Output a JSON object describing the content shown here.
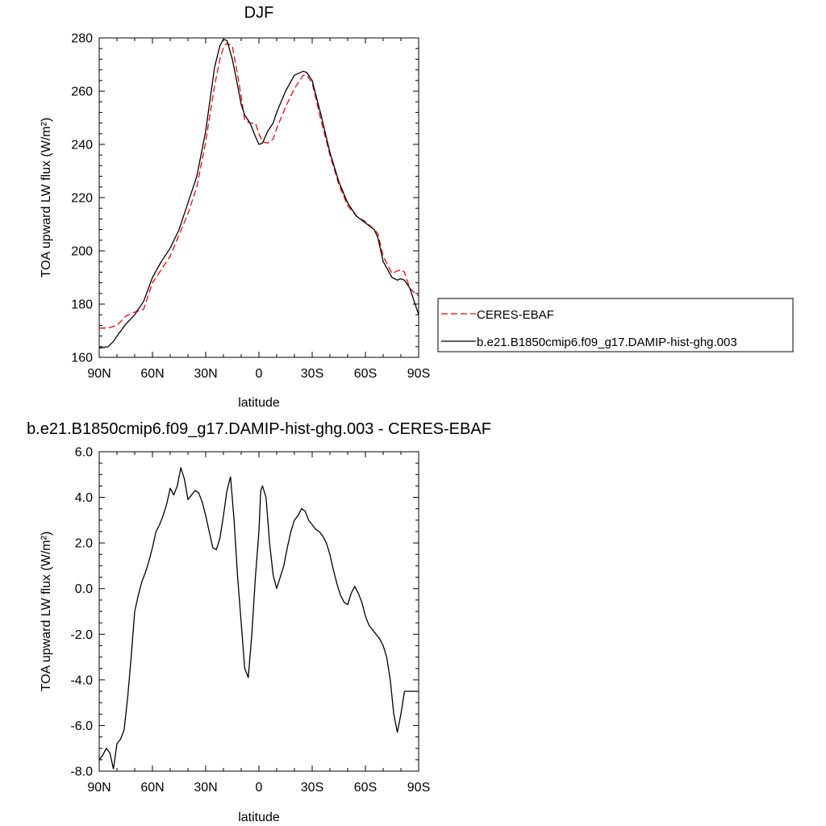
{
  "chart_data": [
    {
      "type": "line",
      "title": "DJF",
      "xlabel": "latitude",
      "ylabel": "TOA upward LW flux (W/m²)",
      "xlim": [
        90,
        -90
      ],
      "ylim": [
        160,
        280
      ],
      "yticks": [
        "280",
        "260",
        "240",
        "220",
        "200",
        "180",
        "160"
      ],
      "xticks": [
        "90N",
        "60N",
        "30N",
        "0",
        "30S",
        "60S",
        "90S"
      ],
      "grid": false,
      "legend_position": "right",
      "series": [
        {
          "name": "CERES-EBAF",
          "color": "#ff0000",
          "style": "dashed",
          "x": [
            90,
            85,
            80,
            75,
            70,
            65,
            60,
            55,
            50,
            45,
            40,
            35,
            30,
            25,
            22,
            20,
            18,
            15,
            12,
            10,
            8,
            5,
            2,
            0,
            -2,
            -5,
            -8,
            -10,
            -15,
            -20,
            -25,
            -27,
            -30,
            -35,
            -40,
            -45,
            -50,
            -55,
            -60,
            -65,
            -67,
            -70,
            -75,
            -78,
            -80,
            -82,
            -85,
            -88,
            -90
          ],
          "y": [
            171,
            171,
            172,
            175.5,
            177,
            178,
            188,
            193,
            198,
            206,
            214,
            224,
            241,
            262,
            272,
            276.5,
            278,
            277,
            266,
            258,
            249,
            248,
            248,
            244,
            241,
            240.5,
            242,
            246,
            254,
            261,
            266,
            266,
            263,
            249,
            236,
            225,
            217,
            213,
            211,
            208,
            206.5,
            198,
            191.5,
            192.5,
            193,
            192,
            186,
            184,
            183
          ]
        },
        {
          "name": "b.e21.B1850cmip6.f09_g17.DAMIP-hist-ghg.003",
          "color": "#000000",
          "style": "solid",
          "x": [
            90,
            85,
            82,
            80,
            75,
            70,
            65,
            60,
            55,
            50,
            45,
            40,
            35,
            30,
            25,
            22,
            20,
            18,
            15,
            12,
            10,
            8,
            5,
            2,
            0,
            -2,
            -5,
            -8,
            -10,
            -15,
            -20,
            -25,
            -27,
            -30,
            -35,
            -40,
            -45,
            -50,
            -55,
            -60,
            -65,
            -67,
            -70,
            -75,
            -78,
            -80,
            -82,
            -85,
            -88,
            -90
          ],
          "y": [
            163.5,
            164,
            166,
            168,
            172.5,
            176,
            181,
            190,
            196,
            201,
            208,
            218,
            228,
            245,
            269,
            277,
            279.5,
            279,
            272,
            262,
            255,
            251,
            248,
            243,
            240,
            240.5,
            245,
            248,
            252,
            260,
            266,
            267.5,
            267,
            264,
            251,
            237,
            226,
            218,
            213,
            210.5,
            208,
            205,
            196,
            190,
            189,
            189.5,
            189,
            186,
            180,
            176
          ]
        }
      ]
    },
    {
      "type": "line",
      "title": "b.e21.B1850cmip6.f09_g17.DAMIP-hist-ghg.003 - CERES-EBAF",
      "xlabel": "latitude",
      "ylabel": "TOA upward LW flux (W/m²)",
      "xlim": [
        90,
        -90
      ],
      "ylim": [
        -8,
        6
      ],
      "yticks": [
        "6.0",
        "4.0",
        "2.0",
        "0.0",
        "-2.0",
        "-4.0",
        "-6.0",
        "-8.0"
      ],
      "xticks": [
        "90N",
        "60N",
        "30N",
        "0",
        "30S",
        "60S",
        "90S"
      ],
      "grid": false,
      "series": [
        {
          "name": "",
          "color": "#000000",
          "style": "solid",
          "x": [
            90,
            88,
            86,
            84,
            82,
            80,
            78,
            76,
            74,
            72,
            70,
            68,
            66,
            64,
            62,
            60,
            58,
            56,
            54,
            52,
            50,
            48,
            46,
            44,
            42,
            40,
            38,
            36,
            34,
            32,
            30,
            28,
            26,
            24,
            22,
            20,
            18,
            16,
            14,
            12,
            10,
            8,
            6,
            4,
            2,
            0,
            -1,
            -2,
            -4,
            -6,
            -8,
            -10,
            -12,
            -14,
            -16,
            -18,
            -20,
            -22,
            -24,
            -26,
            -28,
            -30,
            -32,
            -34,
            -36,
            -38,
            -40,
            -42,
            -44,
            -46,
            -48,
            -50,
            -52,
            -54,
            -56,
            -58,
            -60,
            -62,
            -64,
            -66,
            -68,
            -70,
            -72,
            -74,
            -76,
            -78,
            -80,
            -82,
            -84,
            -86,
            -88,
            -90
          ],
          "y": [
            -7.5,
            -7.3,
            -7.0,
            -7.2,
            -7.9,
            -6.8,
            -6.6,
            -6.2,
            -4.8,
            -3.0,
            -1.0,
            -0.3,
            0.3,
            0.7,
            1.2,
            1.8,
            2.5,
            2.8,
            3.2,
            3.7,
            4.4,
            4.1,
            4.5,
            5.3,
            4.8,
            3.9,
            4.1,
            4.3,
            4.2,
            3.8,
            3.2,
            2.5,
            1.8,
            1.7,
            2.2,
            3.2,
            4.3,
            4.9,
            3.0,
            0.5,
            -1.5,
            -3.5,
            -3.9,
            -2.0,
            0.5,
            2.5,
            4.3,
            4.5,
            4.0,
            2.0,
            0.6,
            0.0,
            0.5,
            1.0,
            1.8,
            2.5,
            3.0,
            3.2,
            3.5,
            3.4,
            3.0,
            2.8,
            2.6,
            2.5,
            2.3,
            2.0,
            1.5,
            0.8,
            0.2,
            -0.3,
            -0.6,
            -0.7,
            -0.2,
            0.1,
            -0.2,
            -0.6,
            -1.2,
            -1.6,
            -1.8,
            -2.0,
            -2.2,
            -2.5,
            -3.0,
            -4.0,
            -5.5,
            -6.3,
            -5.5,
            -4.5,
            -4.5,
            -4.5,
            -4.5,
            -4.5
          ]
        }
      ]
    }
  ]
}
